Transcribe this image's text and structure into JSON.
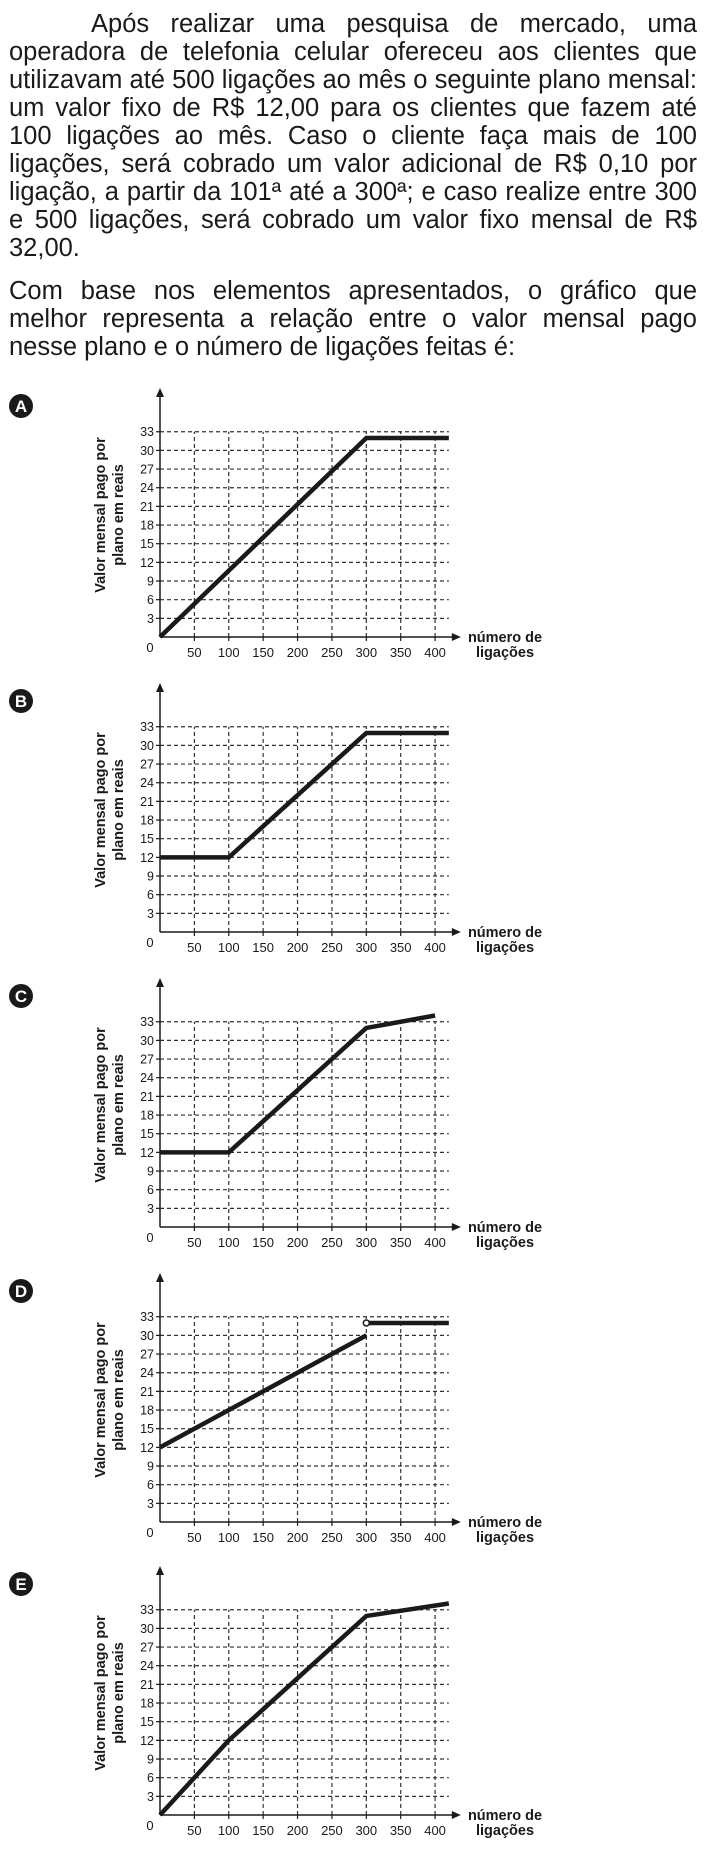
{
  "question": {
    "paragraph1": "Após realizar uma pesquisa de mercado, uma operadora de telefonia celular ofereceu aos clientes que utilizavam até 500 ligações ao mês o seguinte plano mensal: um valor fixo de R$ 12,00 para os clientes que fazem até 100 ligações ao mês. Caso o cliente faça mais de 100 ligações, será cobrado um valor adicional de R$ 0,10 por ligação, a partir da 101ª até a 300ª; e caso realize entre 300 e 500 ligações, será cobrado um valor fixo mensal de R$ 32,00.",
    "paragraph2": "Com base nos elementos apresentados, o gráfico que melhor representa a relação entre o valor mensal pago nesse plano e o número de ligações feitas é:"
  },
  "colors": {
    "line": "#1a1a1a",
    "grid": "#333333",
    "text": "#1a1a1a"
  },
  "chart_data": [
    {
      "option": "A",
      "type": "line",
      "ylabel_line1": "Valor mensal pago por",
      "ylabel_line2": "plano em reais",
      "xlabel_line1": "número de",
      "xlabel_line2": "ligações",
      "xlim": [
        0,
        420
      ],
      "ylim": [
        0,
        34
      ],
      "grid": true,
      "x_ticks": [
        50,
        100,
        150,
        200,
        250,
        300,
        350,
        400
      ],
      "y_ticks": [
        3,
        6,
        9,
        12,
        15,
        18,
        21,
        24,
        27,
        30,
        33
      ],
      "origin_label": "0",
      "segments": [
        {
          "points": [
            [
              0,
              0
            ],
            [
              300,
              32
            ],
            [
              420,
              32
            ]
          ]
        }
      ],
      "open_points": []
    },
    {
      "option": "B",
      "type": "line",
      "ylabel_line1": "Valor mensal pago por",
      "ylabel_line2": "plano em reais",
      "xlabel_line1": "número de",
      "xlabel_line2": "ligações",
      "xlim": [
        0,
        420
      ],
      "ylim": [
        0,
        34
      ],
      "grid": true,
      "x_ticks": [
        50,
        100,
        150,
        200,
        250,
        300,
        350,
        400
      ],
      "y_ticks": [
        3,
        6,
        9,
        12,
        15,
        18,
        21,
        24,
        27,
        30,
        33
      ],
      "origin_label": "0",
      "segments": [
        {
          "points": [
            [
              0,
              12
            ],
            [
              100,
              12
            ],
            [
              300,
              32
            ],
            [
              420,
              32
            ]
          ]
        }
      ],
      "open_points": []
    },
    {
      "option": "C",
      "type": "line",
      "ylabel_line1": "Valor mensal pago por",
      "ylabel_line2": "plano em reais",
      "xlabel_line1": "número de",
      "xlabel_line2": "ligações",
      "xlim": [
        0,
        420
      ],
      "ylim": [
        0,
        34
      ],
      "grid": true,
      "x_ticks": [
        50,
        100,
        150,
        200,
        250,
        300,
        350,
        400
      ],
      "y_ticks": [
        3,
        6,
        9,
        12,
        15,
        18,
        21,
        24,
        27,
        30,
        33
      ],
      "origin_label": "0",
      "segments": [
        {
          "points": [
            [
              0,
              12
            ],
            [
              100,
              12
            ],
            [
              300,
              32
            ],
            [
              400,
              34
            ]
          ]
        }
      ],
      "open_points": []
    },
    {
      "option": "D",
      "type": "line",
      "ylabel_line1": "Valor mensal pago por",
      "ylabel_line2": "plano em reais",
      "xlabel_line1": "número de",
      "xlabel_line2": "ligações",
      "xlim": [
        0,
        420
      ],
      "ylim": [
        0,
        34
      ],
      "grid": true,
      "x_ticks": [
        50,
        100,
        150,
        200,
        250,
        300,
        350,
        400
      ],
      "y_ticks": [
        3,
        6,
        9,
        12,
        15,
        18,
        21,
        24,
        27,
        30,
        33
      ],
      "origin_label": "0",
      "segments": [
        {
          "points": [
            [
              0,
              12
            ],
            [
              300,
              30
            ]
          ]
        },
        {
          "points": [
            [
              300,
              32
            ],
            [
              420,
              32
            ]
          ]
        }
      ],
      "open_points": [
        [
          300,
          32
        ]
      ]
    },
    {
      "option": "E",
      "type": "line",
      "ylabel_line1": "Valor mensal pago por",
      "ylabel_line2": "plano em reais",
      "xlabel_line1": "número de",
      "xlabel_line2": "ligações",
      "xlim": [
        0,
        420
      ],
      "ylim": [
        0,
        34
      ],
      "grid": true,
      "x_ticks": [
        50,
        100,
        150,
        200,
        250,
        300,
        350,
        400
      ],
      "y_ticks": [
        3,
        6,
        9,
        12,
        15,
        18,
        21,
        24,
        27,
        30,
        33
      ],
      "origin_label": "0",
      "segments": [
        {
          "points": [
            [
              0,
              0
            ],
            [
              100,
              12
            ],
            [
              300,
              32
            ],
            [
              420,
              34
            ]
          ]
        }
      ],
      "open_points": []
    }
  ]
}
